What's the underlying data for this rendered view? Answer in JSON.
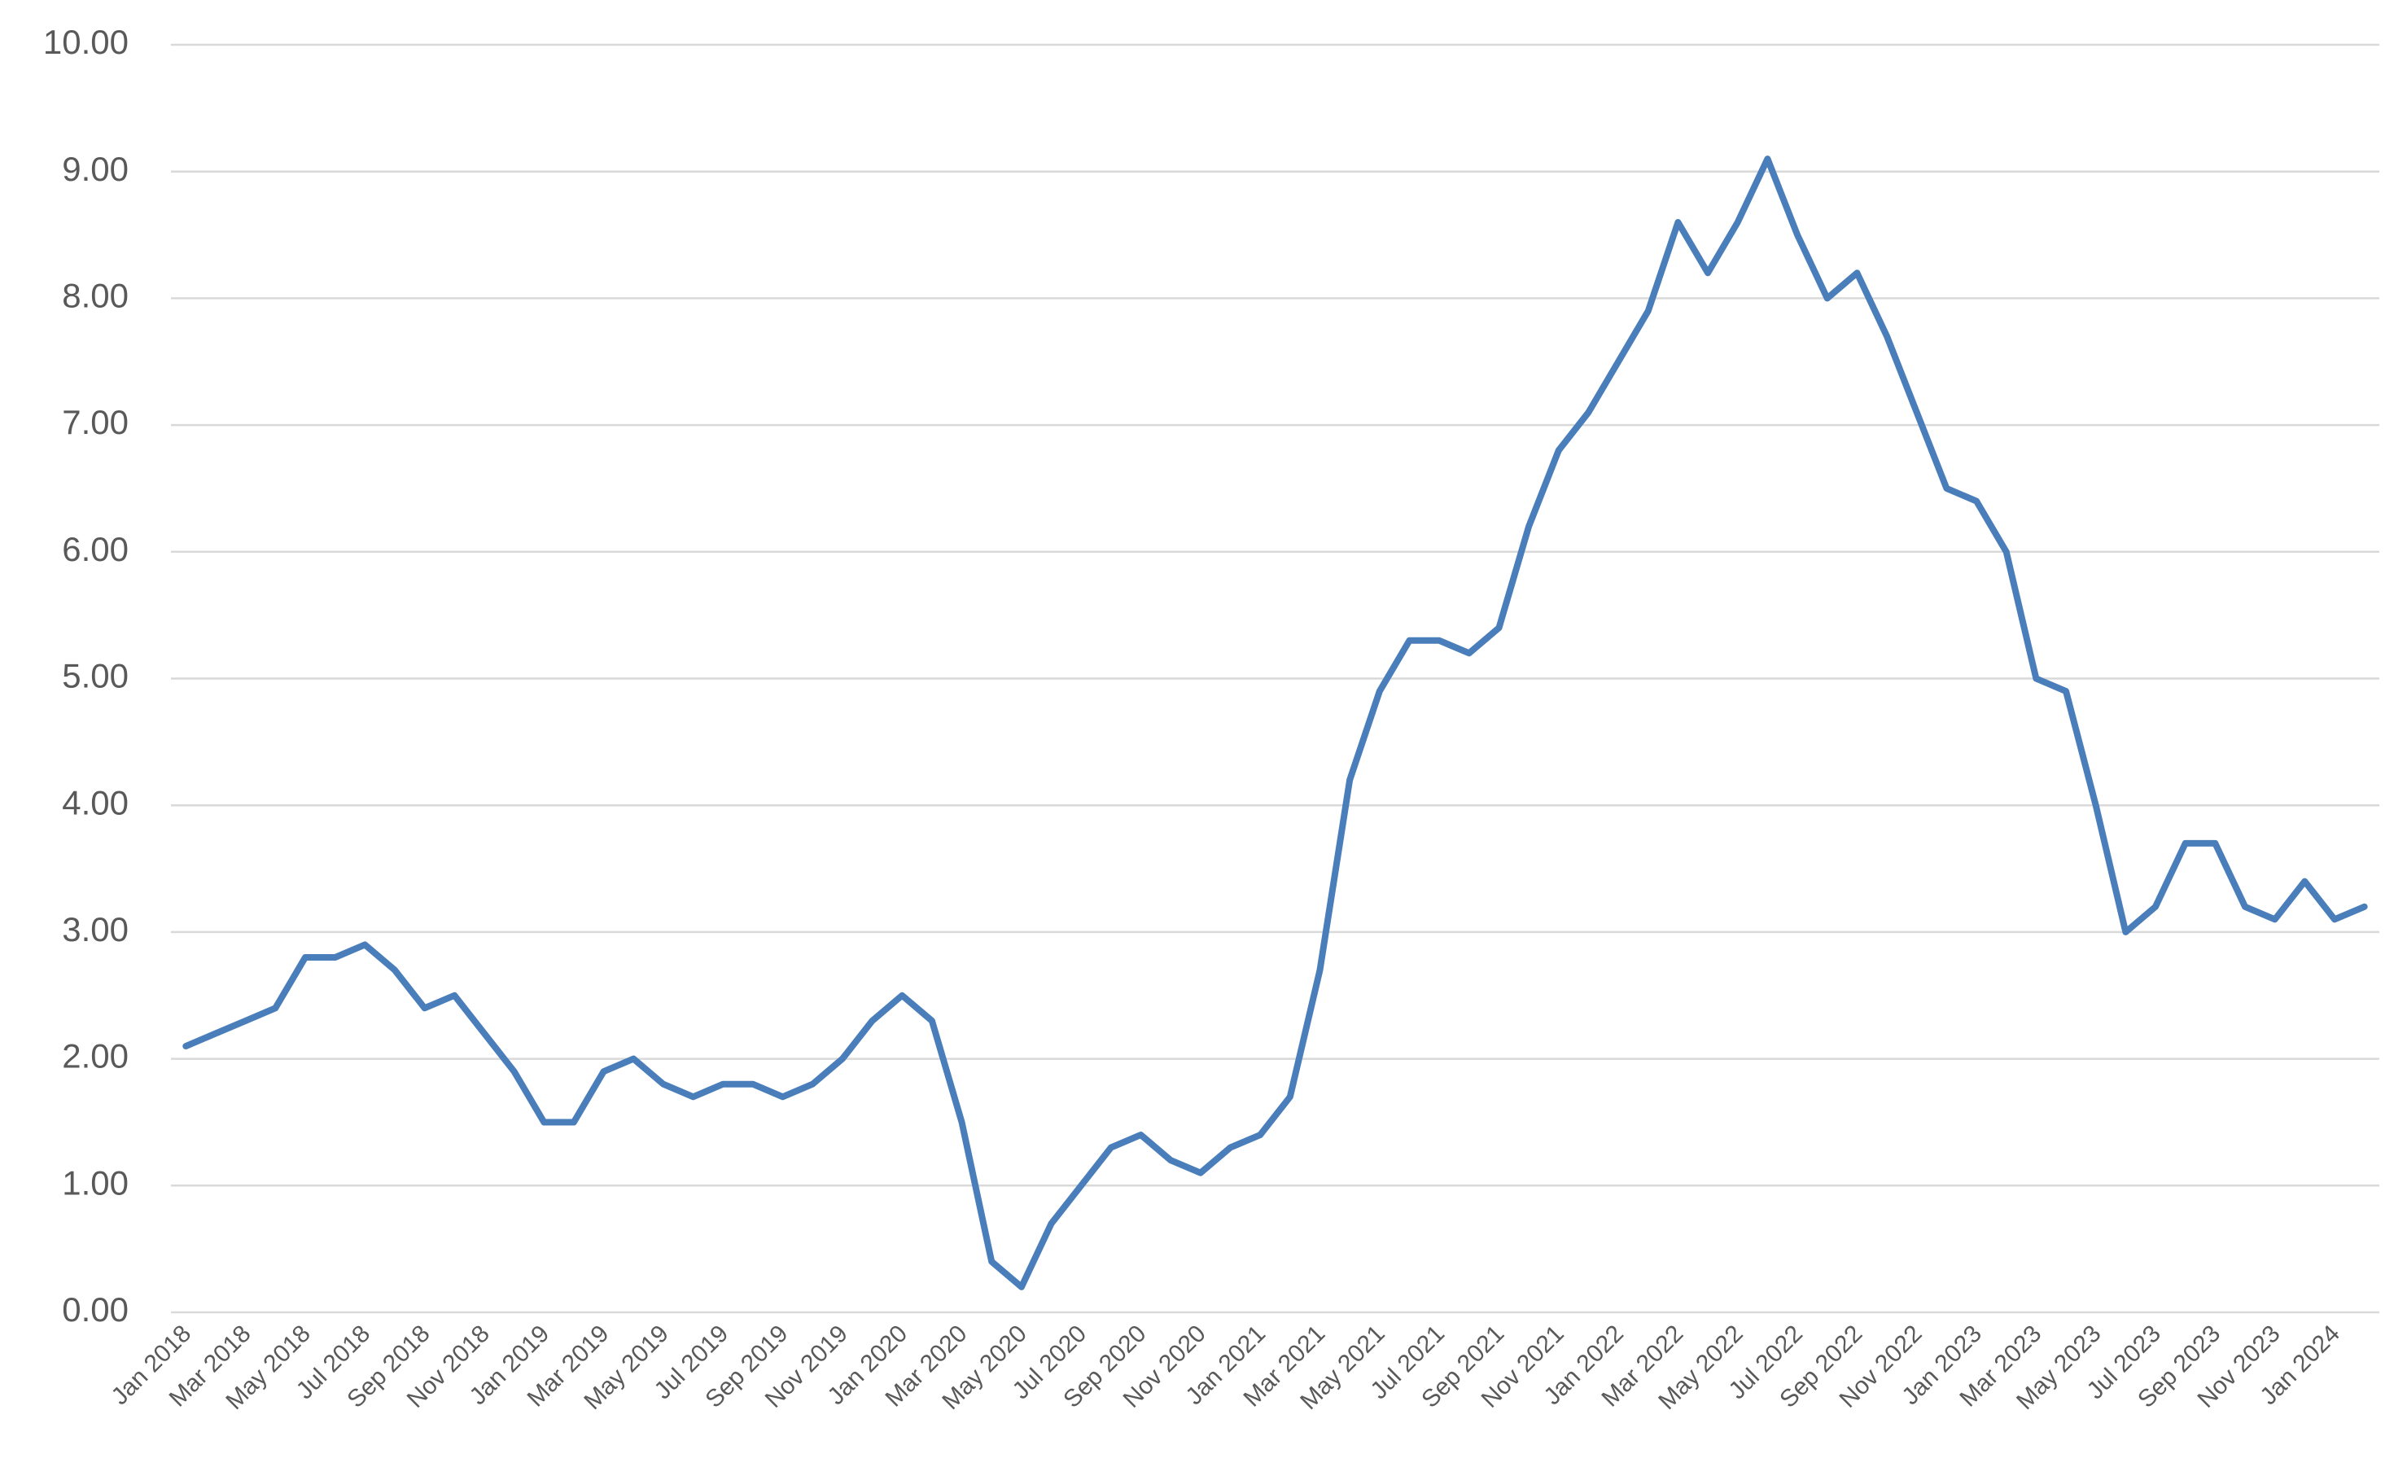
{
  "chart_data": {
    "type": "line",
    "categories": [
      "Jan 2018",
      null,
      "Mar 2018",
      null,
      "May 2018",
      null,
      "Jul 2018",
      null,
      "Sep 2018",
      null,
      "Nov 2018",
      null,
      "Jan 2019",
      null,
      "Mar 2019",
      null,
      "May 2019",
      null,
      "Jul 2019",
      null,
      "Sep 2019",
      null,
      "Nov 2019",
      null,
      "Jan 2020",
      null,
      "Mar 2020",
      null,
      "May 2020",
      null,
      "Jul 2020",
      null,
      "Sep 2020",
      null,
      "Nov 2020",
      null,
      "Jan 2021",
      null,
      "Mar 2021",
      null,
      "May 2021",
      null,
      "Jul 2021",
      null,
      "Sep 2021",
      null,
      "Nov 2021",
      null,
      "Jan 2022",
      null,
      "Mar 2022",
      null,
      "May 2022",
      null,
      "Jul 2022",
      null,
      "Sep 2022",
      null,
      "Nov 2022",
      null,
      "Jan 2023",
      null,
      "Mar 2023",
      null,
      "May 2023",
      null,
      "Jul 2023",
      null,
      "Sep 2023",
      null,
      "Nov 2023",
      null,
      "Jan 2024",
      null
    ],
    "series": [
      {
        "color": "#4a7ebb",
        "values": [
          2.1,
          2.2,
          2.3,
          2.4,
          2.8,
          2.8,
          2.9,
          2.7,
          2.4,
          2.5,
          2.2,
          1.9,
          1.5,
          1.5,
          1.9,
          2.0,
          1.8,
          1.7,
          1.8,
          1.8,
          1.7,
          1.8,
          2.0,
          2.3,
          2.5,
          2.3,
          1.5,
          0.4,
          0.2,
          0.7,
          1.0,
          1.3,
          1.4,
          1.2,
          1.1,
          1.3,
          1.4,
          1.7,
          2.7,
          4.2,
          4.9,
          5.3,
          5.3,
          5.2,
          5.4,
          6.2,
          6.8,
          7.1,
          7.5,
          7.9,
          8.6,
          8.2,
          8.6,
          9.1,
          8.5,
          8.0,
          8.2,
          7.7,
          7.1,
          6.5,
          6.4,
          6.0,
          5.0,
          4.9,
          4.0,
          3.0,
          3.2,
          3.7,
          3.7,
          3.2,
          3.1,
          3.4,
          3.1,
          3.2
        ]
      }
    ],
    "ylim": [
      0,
      10
    ],
    "yticks": [
      {
        "value": 0,
        "label": "0.00"
      },
      {
        "value": 1,
        "label": "1.00"
      },
      {
        "value": 2,
        "label": "2.00"
      },
      {
        "value": 3,
        "label": "3.00"
      },
      {
        "value": 4,
        "label": "4.00"
      },
      {
        "value": 5,
        "label": "5.00"
      },
      {
        "value": 6,
        "label": "6.00"
      },
      {
        "value": 7,
        "label": "7.00"
      },
      {
        "value": 8,
        "label": "8.00"
      },
      {
        "value": 9,
        "label": "9.00"
      },
      {
        "value": 10,
        "label": "10.00"
      }
    ],
    "grid": true
  }
}
